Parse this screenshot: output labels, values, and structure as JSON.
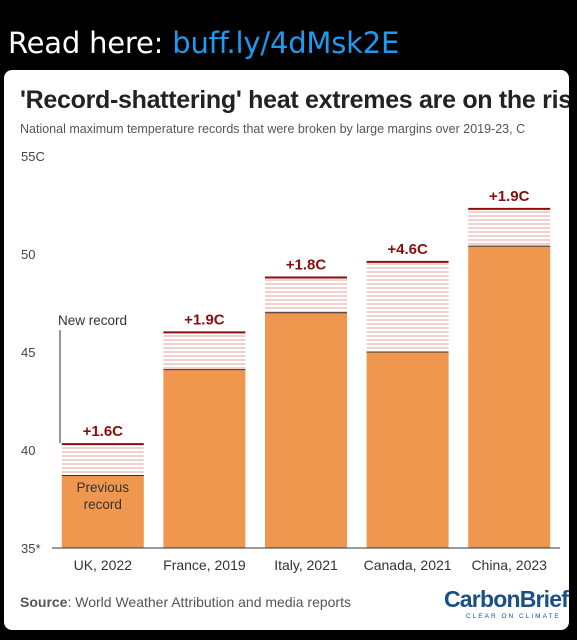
{
  "tweet": {
    "prefix": "Read here: ",
    "link": "buff.ly/4dMsk2E"
  },
  "title": "'Record-shattering' heat extremes are on the rise",
  "subtitle": "National maximum temperature records that were broken by large margins over 2019-23, C",
  "source_label": "Source",
  "source_text": ": World Weather Attribution and media reports",
  "logo": {
    "name_part1": "Carbon",
    "name_part2": "Brief",
    "tagline": "CLEAR ON CLIMATE"
  },
  "colors": {
    "bar": "#f0974f",
    "record_line": "#8b0e0e",
    "hatch": "#e6a0a0",
    "text": "#222222"
  },
  "chart_data": {
    "type": "bar",
    "categories": [
      "UK, 2022",
      "France, 2019",
      "Italy, 2021",
      "Canada, 2021",
      "China, 2023"
    ],
    "previous_record": [
      38.7,
      44.1,
      47.0,
      45.0,
      50.4
    ],
    "new_record": [
      40.3,
      46.0,
      48.8,
      49.6,
      52.3
    ],
    "increase_labels": [
      "+1.6C",
      "+1.9C",
      "+1.8C",
      "+4.6C",
      "+1.9C"
    ],
    "ylim": [
      35,
      55
    ],
    "ytick_labels": [
      "35*",
      "40",
      "45",
      "50",
      "55C"
    ],
    "yticks": [
      35,
      40,
      45,
      50,
      55
    ],
    "annotations": {
      "new_record": "New record",
      "previous_record_line1": "Previous",
      "previous_record_line2": "record"
    },
    "grid": false
  }
}
